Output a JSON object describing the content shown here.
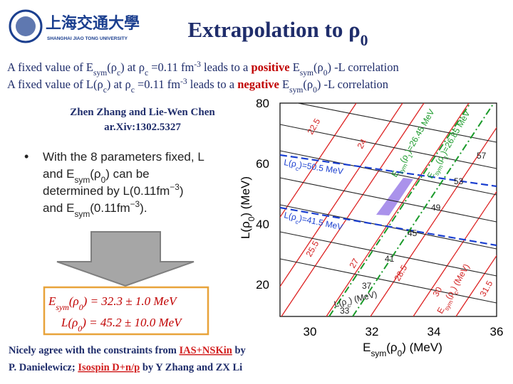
{
  "logo": {
    "chinese": "上海交通大學",
    "english": "SHANGHAI JIAO TONG UNIVERSITY"
  },
  "title": [
    "Extrapolation to ρ",
    "0"
  ],
  "statements": [
    [
      "A fixed value of E",
      "sym",
      "(ρ",
      "c",
      ") at ρ",
      "c",
      " =0.11 fm",
      "-3",
      " leads to a ",
      "positive",
      " E",
      "sym",
      "(ρ",
      "0",
      ") -L correlation"
    ],
    [
      "A fixed value of L(ρ",
      "c",
      ") at ρ",
      "c",
      " =0.11 fm",
      "-3",
      " leads to a ",
      "negative",
      " E",
      "sym",
      "(ρ",
      "0",
      ") -L correlation"
    ]
  ],
  "authors": [
    "Zhen Zhang and Lie-Wen Chen",
    "ar.Xiv:1302.5327"
  ],
  "bullet": [
    [
      "With the 8 parameters fixed, L"
    ],
    [
      "and E",
      "sym",
      "(ρ",
      "0",
      ") can be"
    ],
    [
      "determined by L(0.11fm",
      "−3",
      ")"
    ],
    [
      "and E",
      "sym",
      "(0.11fm",
      "−3",
      ")."
    ]
  ],
  "results": [
    [
      "E",
      "sym",
      "(ρ",
      "0",
      ") = 32.3 ± 1.0 MeV"
    ],
    [
      "L(ρ",
      "0",
      ") = 45.2 ± 10.0 MeV"
    ]
  ],
  "footer": [
    [
      "Nicely agree with the constraints from ",
      "IAS+NSKin",
      " by"
    ],
    [
      "P. Danielewicz; ",
      "Isospin D+n/p",
      " by Y Zhang and ZX Li"
    ]
  ],
  "figure": {
    "y_label": [
      "L(ρ",
      "0",
      ") (MeV)"
    ],
    "x_label": [
      "E",
      "sym",
      "(ρ",
      "0",
      ") (MeV)"
    ],
    "xticks": [
      "30",
      "32",
      "34",
      "36"
    ],
    "yticks": [
      "80",
      "60",
      "40",
      "20"
    ],
    "esym_c_labels": [
      "22.5",
      "24",
      "25.5",
      "27",
      "28.5",
      "30",
      "31.5"
    ],
    "l_c_labels": [
      "57",
      "53",
      "49",
      "45",
      "41",
      "37",
      "33"
    ],
    "l_c_lines": [
      [
        "L(ρ",
        "c",
        ")=50.5 MeV"
      ],
      [
        "L(ρ",
        "c",
        ")=41.5 MeV"
      ]
    ],
    "esym_1_lines": [
      [
        "E",
        "sym",
        "(ρ",
        "1",
        ")=26.45 MeV"
      ],
      [
        "E",
        "sym",
        "(ρ",
        "1",
        ")=26.85 MeV"
      ]
    ],
    "l_c_unit": [
      "L(ρ",
      "c",
      ") (MeV)"
    ],
    "esym_c_unit": [
      "E",
      "sym",
      "(ρ",
      "c",
      ") (MeV)"
    ]
  }
}
